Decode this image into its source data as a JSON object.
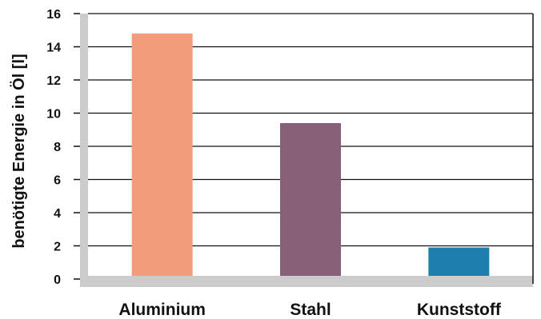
{
  "chart_data": {
    "type": "bar",
    "categories": [
      "Aluminium",
      "Stahl",
      "Kunststoff"
    ],
    "values": [
      14.8,
      9.4,
      1.9
    ],
    "bar_colors": [
      "#F29C7C",
      "#875F76",
      "#1D7FAE"
    ],
    "title": "",
    "xlabel": "",
    "ylabel": "benötigte Energie in Öl [l]",
    "ylim": [
      0,
      16
    ],
    "yticks": [
      0,
      2,
      4,
      6,
      8,
      10,
      12,
      14,
      16
    ],
    "grid": true,
    "legend": "none",
    "frame_color": "#CCCCCC"
  }
}
